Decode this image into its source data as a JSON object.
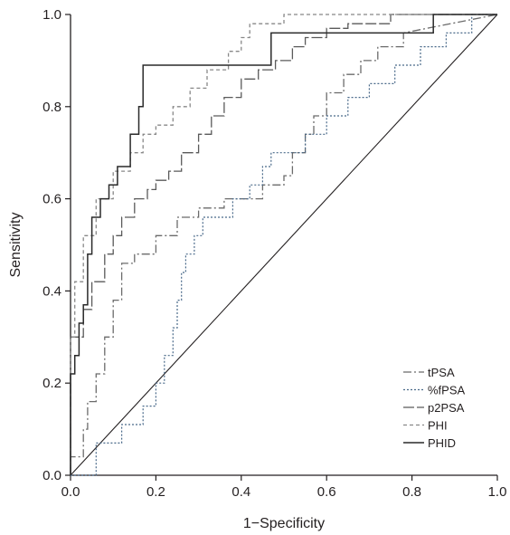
{
  "chart_data": {
    "type": "line",
    "title": "",
    "xlabel": "1−Specificity",
    "ylabel": "Sensitivity",
    "xlim": [
      0,
      1
    ],
    "ylim": [
      0,
      1
    ],
    "x_ticks": [
      "0.0",
      "0.2",
      "0.4",
      "0.6",
      "0.8",
      "1.0"
    ],
    "y_ticks": [
      "0.0",
      "0.2",
      "0.4",
      "0.6",
      "0.8",
      "1.0"
    ],
    "grid": false,
    "legend_position": "bottom-right",
    "reference_line": {
      "x": [
        0,
        1
      ],
      "y": [
        0,
        1
      ]
    },
    "series": [
      {
        "name": "tPSA",
        "style": "dash-dot",
        "x": [
          0,
          0,
          0.03,
          0.03,
          0.04,
          0.04,
          0.06,
          0.06,
          0.08,
          0.08,
          0.1,
          0.1,
          0.12,
          0.12,
          0.15,
          0.15,
          0.2,
          0.2,
          0.25,
          0.25,
          0.3,
          0.3,
          0.36,
          0.36,
          0.45,
          0.45,
          0.5,
          0.5,
          0.52,
          0.52,
          0.55,
          0.55,
          0.57,
          0.57,
          0.6,
          0.6,
          0.64,
          0.64,
          0.68,
          0.68,
          0.72,
          0.72,
          0.78,
          0.78,
          1
        ],
        "y": [
          0,
          0.04,
          0.04,
          0.1,
          0.1,
          0.16,
          0.16,
          0.22,
          0.22,
          0.3,
          0.3,
          0.38,
          0.38,
          0.46,
          0.46,
          0.48,
          0.48,
          0.52,
          0.52,
          0.56,
          0.56,
          0.58,
          0.58,
          0.6,
          0.6,
          0.63,
          0.63,
          0.65,
          0.65,
          0.7,
          0.7,
          0.74,
          0.74,
          0.78,
          0.78,
          0.83,
          0.83,
          0.87,
          0.87,
          0.9,
          0.9,
          0.93,
          0.93,
          0.96,
          1
        ]
      },
      {
        "name": "%fPSA",
        "style": "fine-dotted",
        "x": [
          0,
          0.06,
          0.06,
          0.12,
          0.12,
          0.17,
          0.17,
          0.2,
          0.2,
          0.22,
          0.22,
          0.24,
          0.24,
          0.25,
          0.25,
          0.26,
          0.26,
          0.27,
          0.27,
          0.29,
          0.29,
          0.31,
          0.31,
          0.38,
          0.38,
          0.42,
          0.42,
          0.45,
          0.45,
          0.47,
          0.47,
          0.55,
          0.55,
          0.6,
          0.6,
          0.65,
          0.65,
          0.7,
          0.7,
          0.76,
          0.76,
          0.82,
          0.82,
          0.88,
          0.88,
          0.94,
          0.94,
          1
        ],
        "y": [
          0,
          0,
          0.07,
          0.07,
          0.11,
          0.11,
          0.15,
          0.15,
          0.2,
          0.2,
          0.26,
          0.26,
          0.32,
          0.32,
          0.38,
          0.38,
          0.44,
          0.44,
          0.48,
          0.48,
          0.52,
          0.52,
          0.56,
          0.56,
          0.6,
          0.6,
          0.63,
          0.63,
          0.67,
          0.67,
          0.7,
          0.7,
          0.74,
          0.74,
          0.78,
          0.78,
          0.82,
          0.82,
          0.85,
          0.85,
          0.89,
          0.89,
          0.93,
          0.93,
          0.96,
          0.96,
          1,
          1
        ]
      },
      {
        "name": "p2PSA",
        "style": "long-dash",
        "x": [
          0,
          0,
          0.03,
          0.03,
          0.05,
          0.05,
          0.08,
          0.08,
          0.1,
          0.1,
          0.12,
          0.12,
          0.15,
          0.15,
          0.18,
          0.18,
          0.2,
          0.2,
          0.23,
          0.23,
          0.26,
          0.26,
          0.3,
          0.3,
          0.33,
          0.33,
          0.36,
          0.36,
          0.4,
          0.4,
          0.44,
          0.44,
          0.48,
          0.48,
          0.52,
          0.52,
          0.55,
          0.55,
          0.6,
          0.6,
          0.65,
          0.65,
          0.75,
          0.75,
          1
        ],
        "y": [
          0,
          0.3,
          0.3,
          0.36,
          0.36,
          0.42,
          0.42,
          0.48,
          0.48,
          0.52,
          0.52,
          0.56,
          0.56,
          0.6,
          0.6,
          0.62,
          0.62,
          0.64,
          0.64,
          0.66,
          0.66,
          0.7,
          0.7,
          0.74,
          0.74,
          0.78,
          0.78,
          0.82,
          0.82,
          0.86,
          0.86,
          0.88,
          0.88,
          0.9,
          0.9,
          0.93,
          0.93,
          0.95,
          0.95,
          0.97,
          0.97,
          0.98,
          0.98,
          1,
          1
        ]
      },
      {
        "name": "PHI",
        "style": "short-dash",
        "x": [
          0,
          0,
          0.01,
          0.01,
          0.03,
          0.03,
          0.06,
          0.06,
          0.1,
          0.1,
          0.14,
          0.14,
          0.17,
          0.17,
          0.2,
          0.2,
          0.24,
          0.24,
          0.28,
          0.28,
          0.32,
          0.32,
          0.37,
          0.37,
          0.4,
          0.4,
          0.42,
          0.42,
          0.5,
          0.5,
          1
        ],
        "y": [
          0,
          0.3,
          0.3,
          0.42,
          0.42,
          0.52,
          0.52,
          0.6,
          0.6,
          0.66,
          0.66,
          0.7,
          0.7,
          0.74,
          0.74,
          0.76,
          0.76,
          0.8,
          0.8,
          0.84,
          0.84,
          0.88,
          0.88,
          0.92,
          0.92,
          0.95,
          0.95,
          0.98,
          0.98,
          1,
          1
        ]
      },
      {
        "name": "PHID",
        "style": "solid",
        "x": [
          0,
          0,
          0.01,
          0.01,
          0.02,
          0.02,
          0.03,
          0.03,
          0.04,
          0.04,
          0.05,
          0.05,
          0.07,
          0.07,
          0.09,
          0.09,
          0.11,
          0.11,
          0.14,
          0.14,
          0.16,
          0.16,
          0.17,
          0.17,
          0.47,
          0.47,
          0.85,
          0.85,
          1
        ],
        "y": [
          0,
          0.22,
          0.22,
          0.26,
          0.26,
          0.33,
          0.33,
          0.37,
          0.37,
          0.48,
          0.48,
          0.56,
          0.56,
          0.6,
          0.6,
          0.63,
          0.63,
          0.67,
          0.67,
          0.74,
          0.74,
          0.8,
          0.8,
          0.89,
          0.89,
          0.96,
          0.96,
          1,
          1
        ]
      }
    ]
  },
  "colors": {
    "axis": "#231f20",
    "series": {
      "tPSA": "#6b6b6b",
      "%fPSA": "#4a6a8a",
      "p2PSA": "#5a5a5a",
      "PHI": "#888888",
      "PHID": "#2a2a2a"
    },
    "reference_line": "#231f20"
  }
}
